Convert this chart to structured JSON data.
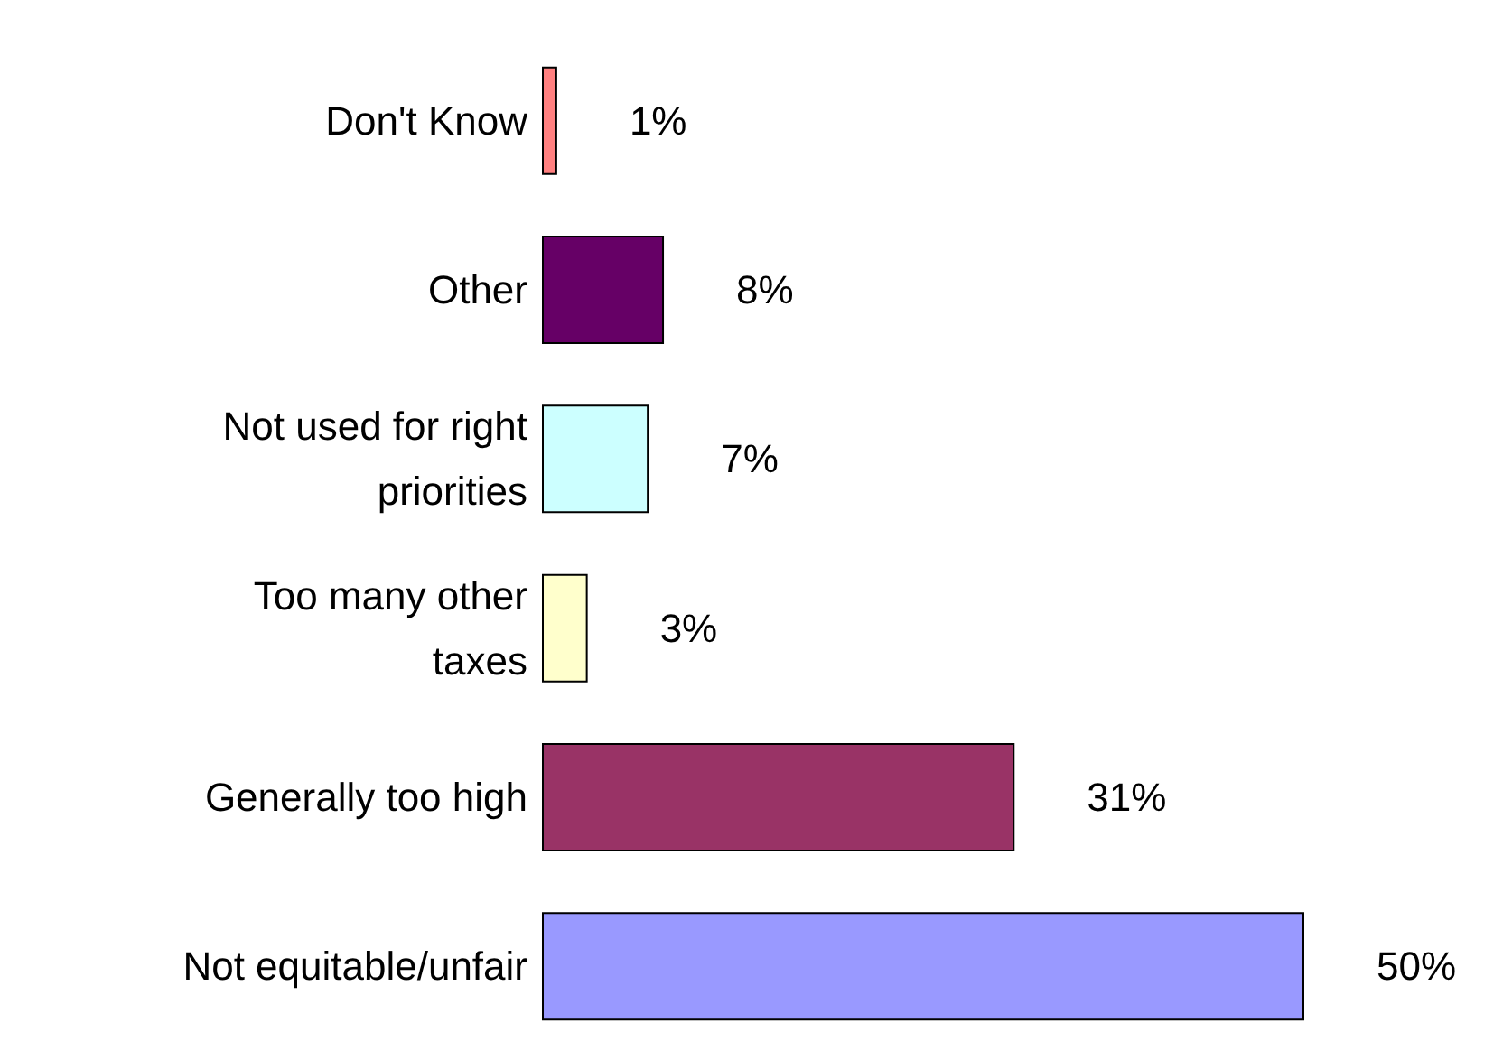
{
  "chart_data": {
    "type": "bar",
    "orientation": "horizontal",
    "categories": [
      "Don't Know",
      "Other",
      "Not used for right\npriorities",
      "Too many other\ntaxes",
      "Generally too high",
      "Not equitable/unfair"
    ],
    "values": [
      1,
      8,
      7,
      3,
      31,
      50
    ],
    "colors": [
      "#ff8080",
      "#660066",
      "#ccffff",
      "#ffffcc",
      "#993366",
      "#9999ff"
    ],
    "value_labels": [
      "1%",
      "8%",
      "7%",
      "3%",
      "31%",
      "50%"
    ]
  }
}
